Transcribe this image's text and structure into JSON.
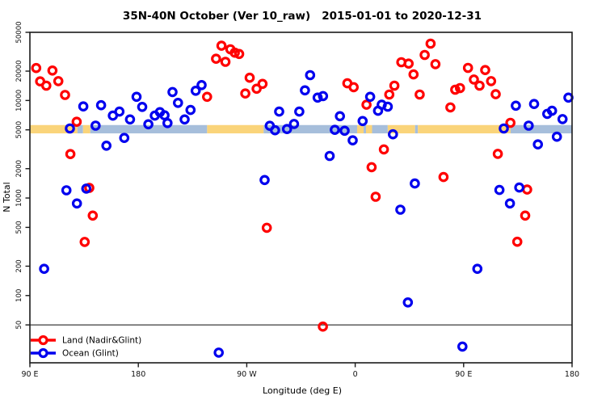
{
  "title": "35N-40N October (Ver 10_raw)   2015-01-01 to 2020-12-31",
  "chart_data": {
    "type": "scatter",
    "title": "35N-40N October (Ver 10_raw)   2015-01-01 to 2020-12-31",
    "xlabel": "Longitude (deg E)",
    "ylabel": "N Total",
    "x_axis": {
      "range": [
        90,
        540
      ],
      "note": "longitude axis wraps: 90E -> 180 -> 90W -> 0 -> 90E -> 180",
      "ticks": [
        {
          "value": 90,
          "label": "90 E"
        },
        {
          "value": 180,
          "label": "180"
        },
        {
          "value": 270,
          "label": "90 W"
        },
        {
          "value": 360,
          "label": "0"
        },
        {
          "value": 450,
          "label": "90 E"
        },
        {
          "value": 540,
          "label": "180"
        }
      ]
    },
    "y_axis": {
      "scale": "log",
      "range": [
        20,
        50000
      ],
      "ticks": [
        50,
        100,
        200,
        500,
        1000,
        2000,
        5000,
        10000,
        20000,
        50000
      ]
    },
    "reference_line": {
      "y": 50,
      "color": "#3c3c3c"
    },
    "land_ocean_band": {
      "n_low": 4600,
      "n_high": 5600,
      "colors": {
        "land": "#FAD47A",
        "ocean": "#A6BEDB"
      },
      "segments": [
        {
          "from": 90,
          "to": 129.5,
          "type": "land"
        },
        {
          "from": 129.5,
          "to": 134.1,
          "type": "ocean"
        },
        {
          "from": 134.1,
          "to": 140.1,
          "type": "land"
        },
        {
          "from": 140.1,
          "to": 237.1,
          "type": "ocean"
        },
        {
          "from": 237.1,
          "to": 284.0,
          "type": "land"
        },
        {
          "from": 284.0,
          "to": 361.6,
          "type": "ocean"
        },
        {
          "from": 361.6,
          "to": 367.0,
          "type": "land"
        },
        {
          "from": 367.0,
          "to": 369.0,
          "type": "ocean"
        },
        {
          "from": 369.0,
          "to": 374.0,
          "type": "land"
        },
        {
          "from": 374.0,
          "to": 387.0,
          "type": "ocean"
        },
        {
          "from": 387.0,
          "to": 409.7,
          "type": "land"
        },
        {
          "from": 409.7,
          "to": 412.0,
          "type": "ocean"
        },
        {
          "from": 412.0,
          "to": 489.0,
          "type": "land"
        },
        {
          "from": 489.0,
          "to": 540.0,
          "type": "ocean"
        }
      ]
    },
    "series": [
      {
        "name": "Land (Nadir&Glint)",
        "color": "#FF0000",
        "points": [
          [
            95.2,
            21500
          ],
          [
            108.7,
            20300
          ],
          [
            98.5,
            15700
          ],
          [
            103.6,
            14200
          ],
          [
            113.6,
            15800
          ],
          [
            119.2,
            11400
          ],
          [
            128.8,
            6050
          ],
          [
            123.6,
            2820
          ],
          [
            139.3,
            1270
          ],
          [
            142.2,
            660
          ],
          [
            135.5,
            355
          ],
          [
            237.1,
            10900
          ],
          [
            249.0,
            36400
          ],
          [
            256.4,
            33500
          ],
          [
            260.1,
            30900
          ],
          [
            263.7,
            30000
          ],
          [
            244.5,
            26800
          ],
          [
            252.3,
            24900
          ],
          [
            272.4,
            17100
          ],
          [
            283.1,
            14800
          ],
          [
            278.2,
            13200
          ],
          [
            268.8,
            11800
          ],
          [
            286.6,
            495
          ],
          [
            333.2,
            48
          ],
          [
            353.5,
            15000
          ],
          [
            358.7,
            13700
          ],
          [
            369.4,
            9050
          ],
          [
            383.8,
            3150
          ],
          [
            373.6,
            2070
          ],
          [
            377.0,
            1030
          ],
          [
            392.5,
            14200
          ],
          [
            388.3,
            11500
          ],
          [
            422.6,
            38300
          ],
          [
            417.7,
            29300
          ],
          [
            398.3,
            24700
          ],
          [
            404.3,
            23900
          ],
          [
            408.4,
            18500
          ],
          [
            426.6,
            23600
          ],
          [
            453.6,
            21600
          ],
          [
            467.9,
            20500
          ],
          [
            458.5,
            16400
          ],
          [
            472.8,
            15800
          ],
          [
            463.2,
            14200
          ],
          [
            443.0,
            12900
          ],
          [
            447.0,
            13400
          ],
          [
            476.6,
            11600
          ],
          [
            413.5,
            11500
          ],
          [
            439.0,
            8500
          ],
          [
            488.8,
            5900
          ],
          [
            478.4,
            2840
          ],
          [
            433.3,
            1640
          ],
          [
            502.7,
            1220
          ],
          [
            501.1,
            660
          ],
          [
            494.5,
            356
          ]
        ]
      },
      {
        "name": "Ocean (Glint)",
        "color": "#0000EE",
        "points": [
          [
            123.2,
            5160
          ],
          [
            144.5,
            5520
          ],
          [
            134.3,
            8700
          ],
          [
            149.1,
            8950
          ],
          [
            158.9,
            7000
          ],
          [
            164.3,
            7700
          ],
          [
            173.1,
            6400
          ],
          [
            178.5,
            10900
          ],
          [
            183.2,
            8600
          ],
          [
            188.3,
            5700
          ],
          [
            193.7,
            7000
          ],
          [
            197.9,
            7600
          ],
          [
            201.7,
            7050
          ],
          [
            204.2,
            5870
          ],
          [
            208.4,
            12200
          ],
          [
            212.9,
            9450
          ],
          [
            218.4,
            6400
          ],
          [
            223.3,
            8000
          ],
          [
            227.6,
            12600
          ],
          [
            232.5,
            14400
          ],
          [
            153.5,
            3440
          ],
          [
            168.3,
            4130
          ],
          [
            120.3,
            1200
          ],
          [
            136.8,
            1250
          ],
          [
            129.0,
            880
          ],
          [
            101.8,
            188
          ],
          [
            296.9,
            7700
          ],
          [
            313.6,
            7700
          ],
          [
            309.2,
            5750
          ],
          [
            303.4,
            5100
          ],
          [
            289.1,
            5500
          ],
          [
            293.5,
            4950
          ],
          [
            322.6,
            18200
          ],
          [
            318.3,
            12700
          ],
          [
            328.8,
            10700
          ],
          [
            333.3,
            11100
          ],
          [
            347.3,
            6900
          ],
          [
            343.1,
            5000
          ],
          [
            351.2,
            4900
          ],
          [
            357.9,
            3900
          ],
          [
            338.8,
            2700
          ],
          [
            284.8,
            1530
          ],
          [
            246.7,
            26
          ],
          [
            372.4,
            10900
          ],
          [
            379.0,
            7850
          ],
          [
            382.0,
            9050
          ],
          [
            387.0,
            8650
          ],
          [
            366.2,
            6150
          ],
          [
            391.3,
            4500
          ],
          [
            397.5,
            760
          ],
          [
            409.5,
            1410
          ],
          [
            403.7,
            85
          ],
          [
            461.4,
            188
          ],
          [
            449.0,
            30
          ],
          [
            493.3,
            8850
          ],
          [
            508.5,
            9200
          ],
          [
            519.4,
            7300
          ],
          [
            523.4,
            7850
          ],
          [
            532.1,
            6450
          ],
          [
            537.0,
            10700
          ],
          [
            483.3,
            5160
          ],
          [
            504.0,
            5520
          ],
          [
            527.4,
            4250
          ],
          [
            511.6,
            3550
          ],
          [
            479.7,
            1210
          ],
          [
            496.2,
            1280
          ],
          [
            488.4,
            880
          ]
        ]
      }
    ],
    "legend": {
      "position": "bottom-left",
      "items": [
        {
          "label": "Land (Nadir&Glint)",
          "color": "#FF0000"
        },
        {
          "label": "Ocean (Glint)",
          "color": "#0000EE"
        }
      ]
    }
  }
}
